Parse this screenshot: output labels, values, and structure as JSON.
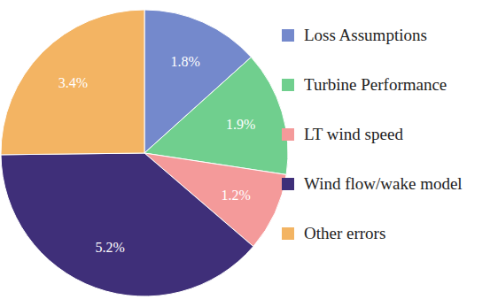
{
  "chart_data": {
    "type": "pie",
    "categories": [
      "Loss Assumptions",
      "Turbine Performance",
      "LT wind speed",
      "Wind flow/wake model",
      "Other errors"
    ],
    "values": [
      1.8,
      1.9,
      1.2,
      5.2,
      3.4
    ],
    "value_labels": [
      "1.8%",
      "1.9%",
      "1.2%",
      "5.2%",
      "3.4%"
    ],
    "colors": [
      "#7489cc",
      "#70cf8e",
      "#f49a9a",
      "#3f2f79",
      "#f3b463"
    ],
    "data_labels": true,
    "legend": "right"
  }
}
